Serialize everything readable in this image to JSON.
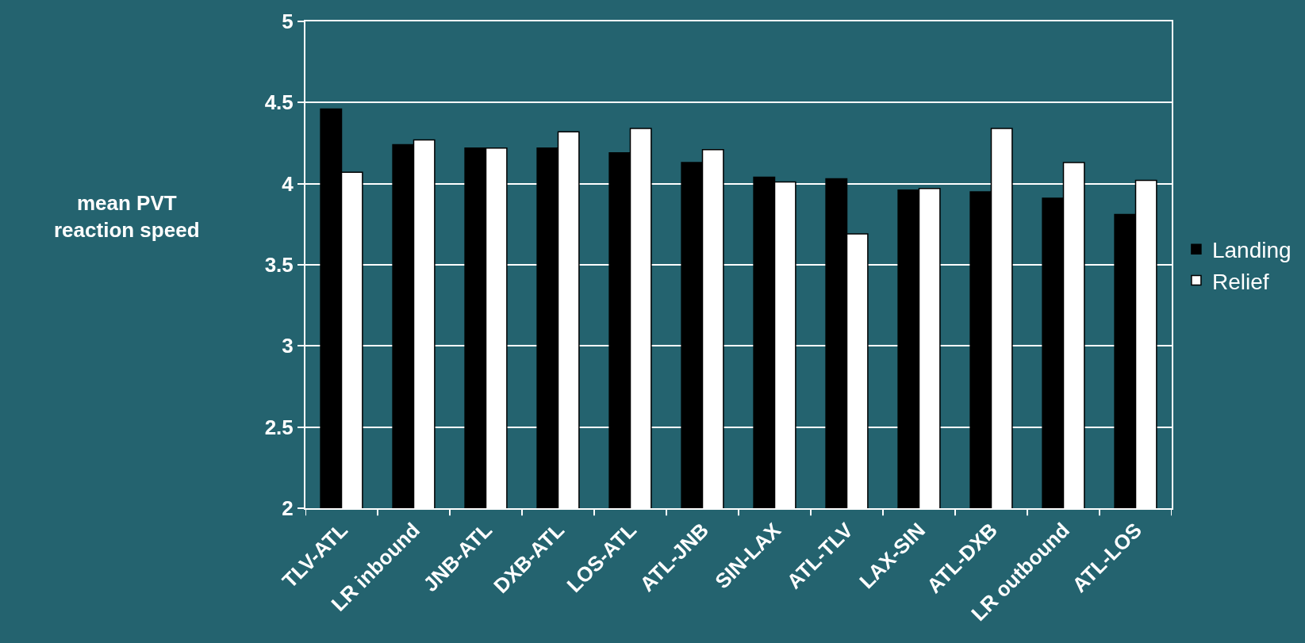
{
  "chart_data": {
    "type": "bar",
    "ylabel": "mean PVT\nreaction speed",
    "categories": [
      "TLV-ATL",
      "LR inbound",
      "JNB-ATL",
      "DXB-ATL",
      "LOS-ATL",
      "ATL-JNB",
      "SIN-LAX",
      "ATL-TLV",
      "LAX-SIN",
      "ATL-DXB",
      "LR outbound",
      "ATL-LOS"
    ],
    "series": [
      {
        "name": "Landing",
        "color": "#000000",
        "values": [
          4.46,
          4.24,
          4.22,
          4.22,
          4.19,
          4.13,
          4.04,
          4.03,
          3.96,
          3.95,
          3.91,
          3.81
        ]
      },
      {
        "name": "Relief",
        "color": "#ffffff",
        "values": [
          4.07,
          4.27,
          4.22,
          4.32,
          4.34,
          4.21,
          4.01,
          3.69,
          3.97,
          4.34,
          4.13,
          4.02
        ]
      }
    ],
    "ylim": [
      2,
      5
    ],
    "yticks": [
      2,
      2.5,
      3,
      3.5,
      4,
      4.5,
      5
    ],
    "grid": "y",
    "legend": "right"
  }
}
